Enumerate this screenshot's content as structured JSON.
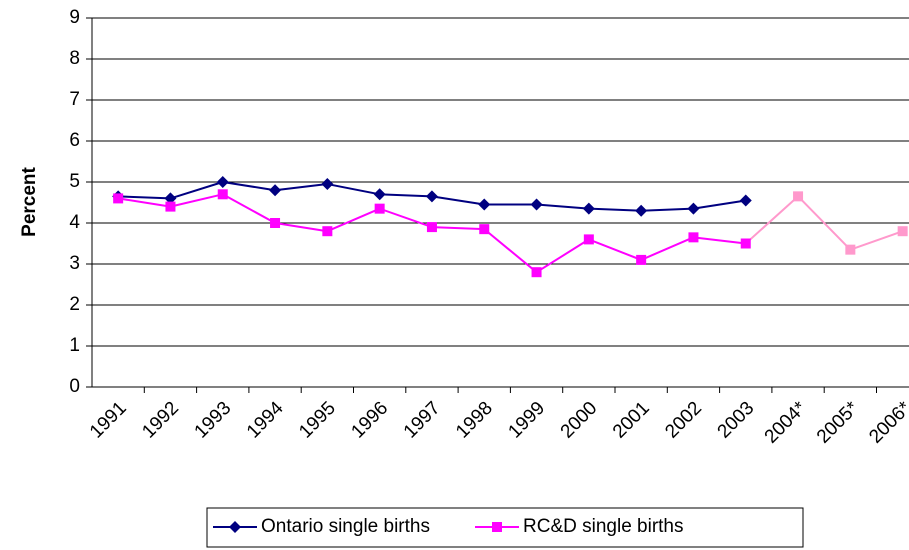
{
  "chart_data": {
    "type": "line",
    "y_label": "Percent",
    "categories": [
      "1991",
      "1992",
      "1993",
      "1994",
      "1995",
      "1996",
      "1997",
      "1998",
      "1999",
      "2000",
      "2001",
      "2002",
      "2003",
      "2004*",
      "2005*",
      "2006*"
    ],
    "series": [
      {
        "name": "Ontario single births",
        "color": "#000080",
        "marker": "diamond",
        "values": [
          4.65,
          4.6,
          5.0,
          4.8,
          4.95,
          4.7,
          4.65,
          4.45,
          4.45,
          4.35,
          4.3,
          4.35,
          4.55,
          null,
          null,
          null
        ]
      },
      {
        "name": "RC&D single births",
        "color": "#ff00ff",
        "marker": "square",
        "point_colors": [
          "#ff00ff",
          "#ff00ff",
          "#ff00ff",
          "#ff00ff",
          "#ff00ff",
          "#ff00ff",
          "#ff00ff",
          "#ff00ff",
          "#ff00ff",
          "#ff00ff",
          "#ff00ff",
          "#ff00ff",
          "#ff00ff",
          "#ff99cc",
          "#ff99cc",
          "#ff99cc"
        ],
        "values": [
          4.6,
          4.4,
          4.7,
          4.0,
          3.8,
          4.35,
          3.9,
          3.85,
          2.8,
          3.6,
          3.1,
          3.65,
          3.5,
          4.65,
          3.35,
          3.8
        ]
      }
    ],
    "ylim": [
      0,
      9
    ],
    "yticks": [
      0,
      1,
      2,
      3,
      4,
      5,
      6,
      7,
      8,
      9
    ],
    "grid": true,
    "legend": "bottom"
  }
}
